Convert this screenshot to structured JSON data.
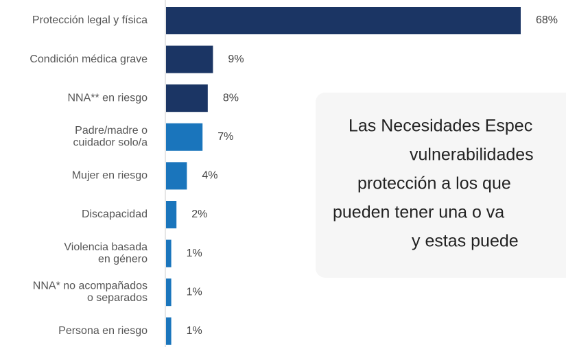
{
  "chart_data": {
    "type": "bar",
    "orientation": "horizontal",
    "categories": [
      "Protección legal y física",
      "Condición médica grave",
      "NNA** en riesgo",
      "Padre/madre o\ncuidador solo/a",
      "Mujer en riesgo",
      "Discapacidad",
      "Violencia basada\nen género",
      "NNA* no acompañados\no separados",
      "Persona en riesgo"
    ],
    "values": [
      68,
      9,
      8,
      7,
      4,
      2,
      1,
      1,
      1
    ],
    "value_labels": [
      "68%",
      "9%",
      "8%",
      "7%",
      "4%",
      "2%",
      "1%",
      "1%",
      "1%"
    ],
    "colors": [
      "#1b3564",
      "#1b3564",
      "#1b3564",
      "#1a75bc",
      "#1a75bc",
      "#1a75bc",
      "#1a75bc",
      "#1a75bc",
      "#1a75bc"
    ]
  },
  "note_box": {
    "lines": [
      "Las Necesidades Espec",
      "vulnerabilidades",
      "protección a los que",
      "pueden tener una o va",
      "y estas puede"
    ]
  }
}
